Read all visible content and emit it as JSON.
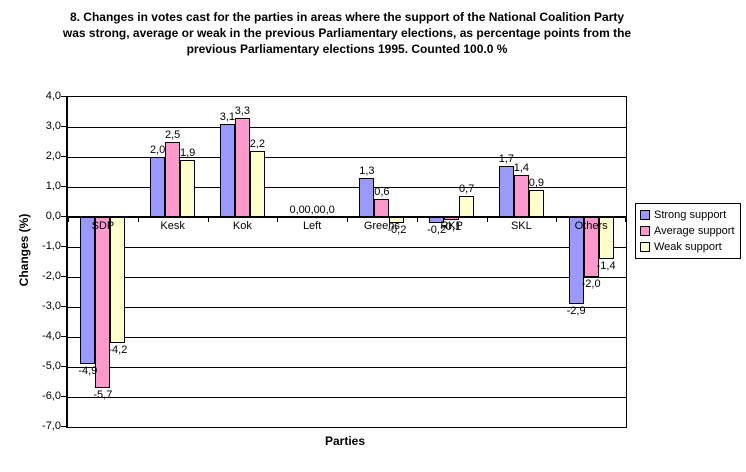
{
  "page": {
    "background": "#FFFFFF"
  },
  "chart_data": {
    "type": "bar",
    "title": "8. Changes in votes cast for the parties in areas where the support of the National Coalition Party was strong, average or weak in the previous Parliamentary elections, as percentage points from the previous Parliamentary elections 1995. Counted 100.0 %",
    "title_lines": [
      "8. Changes in votes cast for the parties in areas where the support of the National Coalition Party",
      "was strong, average or weak in the previous Parliamentary elections, as percentage points from the",
      "previous Parliamentary elections 1995. Counted 100.0 %"
    ],
    "xlabel": "Parties",
    "ylabel": "Changes (%)",
    "ylim": [
      -7,
      4
    ],
    "ytick_step": 1.0,
    "ytick_labels": [
      "4,0",
      "3,0",
      "2,0",
      "1,0",
      "0,0",
      "-1,0",
      "-2,0",
      "-3,0",
      "-4,0",
      "-5,0",
      "-6,0",
      "-7,0"
    ],
    "grid": true,
    "gridline_color": "#000000",
    "plot_border_color": "#000000",
    "legend_position": "right",
    "decimal_separator": ",",
    "categories": [
      "SDP",
      "Kesk",
      "Kok",
      "Left",
      "Greens",
      "RKP",
      "SKL",
      "Others"
    ],
    "series": [
      {
        "name": "Strong support",
        "color": "#9999FF",
        "values": [
          -4.9,
          2.0,
          3.1,
          0.0,
          1.3,
          -0.2,
          1.7,
          -2.9
        ],
        "labels": [
          "-4,9",
          "2,0",
          "3,1",
          "0,0",
          "1,3",
          "-0,2",
          "1,7",
          "-2,9"
        ]
      },
      {
        "name": "Average support",
        "color": "#FF99CC",
        "values": [
          -5.7,
          2.5,
          3.3,
          0.0,
          0.6,
          -0.1,
          1.4,
          -2.0
        ],
        "labels": [
          "-5,7",
          "2,5",
          "3,3",
          "0,0",
          "0,6",
          "-0,1",
          "1,4",
          "-2,0"
        ]
      },
      {
        "name": "Weak support",
        "color": "#FFFFCC",
        "values": [
          -4.2,
          1.9,
          2.2,
          0.0,
          -0.2,
          0.7,
          0.9,
          -1.4
        ],
        "labels": [
          "-4,2",
          "1,9",
          "2,2",
          "0,0",
          "-0,2",
          "0,7",
          "0,9",
          "-1,4"
        ]
      }
    ]
  }
}
